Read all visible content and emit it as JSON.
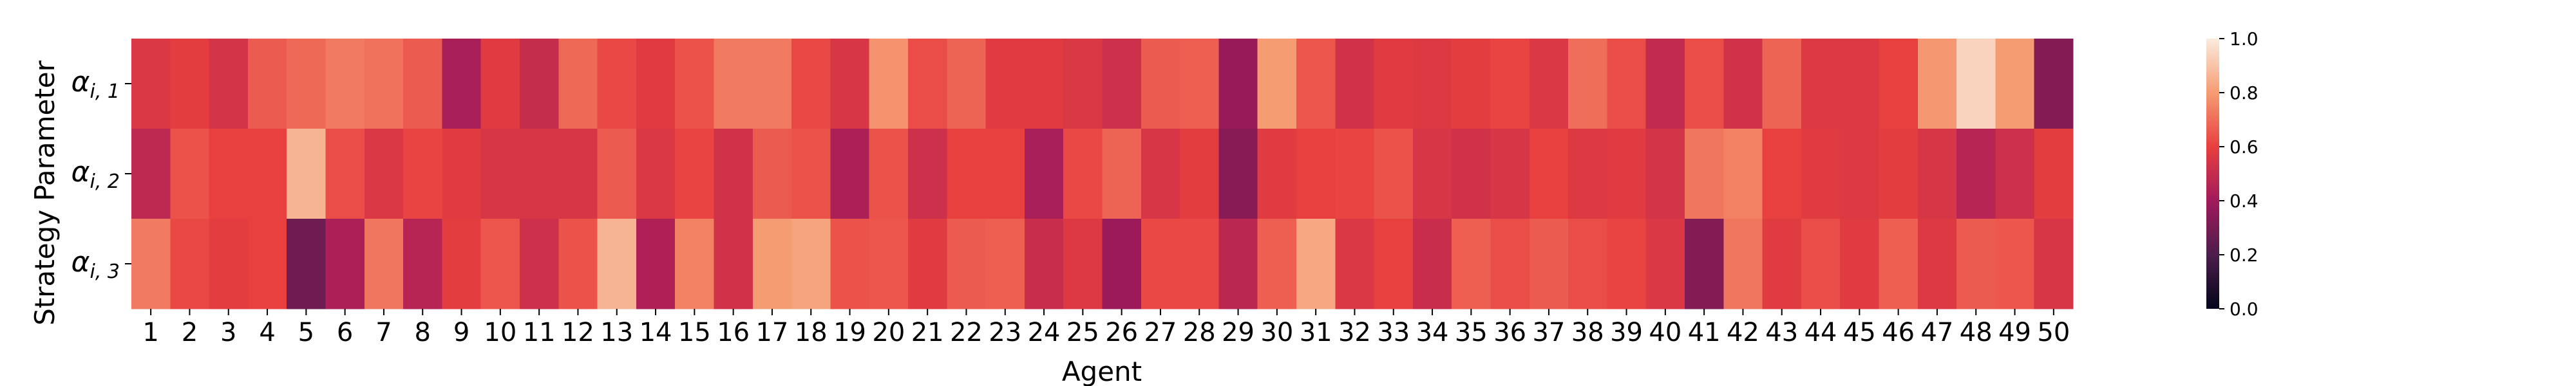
{
  "chart_data": {
    "type": "heatmap",
    "xlabel": "Agent",
    "ylabel": "Strategy Parameter",
    "x_categories": [
      "1",
      "2",
      "3",
      "4",
      "5",
      "6",
      "7",
      "8",
      "9",
      "10",
      "11",
      "12",
      "13",
      "14",
      "15",
      "16",
      "17",
      "18",
      "19",
      "20",
      "21",
      "22",
      "23",
      "24",
      "25",
      "26",
      "27",
      "28",
      "29",
      "30",
      "31",
      "32",
      "33",
      "34",
      "35",
      "36",
      "37",
      "38",
      "39",
      "40",
      "41",
      "42",
      "43",
      "44",
      "45",
      "46",
      "47",
      "48",
      "49",
      "50"
    ],
    "y_categories": [
      {
        "base": "α",
        "sub": "i, 1"
      },
      {
        "base": "α",
        "sub": "i, 2"
      },
      {
        "base": "α",
        "sub": "i, 3"
      }
    ],
    "values": [
      [
        0.56,
        0.59,
        0.54,
        0.66,
        0.69,
        0.73,
        0.71,
        0.66,
        0.42,
        0.58,
        0.5,
        0.69,
        0.62,
        0.58,
        0.64,
        0.73,
        0.73,
        0.62,
        0.55,
        0.78,
        0.63,
        0.68,
        0.58,
        0.58,
        0.56,
        0.52,
        0.66,
        0.67,
        0.38,
        0.8,
        0.65,
        0.53,
        0.58,
        0.57,
        0.59,
        0.61,
        0.56,
        0.7,
        0.63,
        0.49,
        0.63,
        0.53,
        0.68,
        0.57,
        0.57,
        0.6,
        0.79,
        0.94,
        0.8,
        0.33
      ],
      [
        0.48,
        0.64,
        0.6,
        0.6,
        0.86,
        0.63,
        0.56,
        0.61,
        0.58,
        0.55,
        0.55,
        0.55,
        0.66,
        0.56,
        0.61,
        0.53,
        0.66,
        0.64,
        0.43,
        0.64,
        0.52,
        0.6,
        0.6,
        0.42,
        0.62,
        0.68,
        0.55,
        0.59,
        0.34,
        0.58,
        0.6,
        0.61,
        0.64,
        0.55,
        0.53,
        0.55,
        0.6,
        0.57,
        0.58,
        0.54,
        0.72,
        0.74,
        0.6,
        0.58,
        0.57,
        0.59,
        0.55,
        0.46,
        0.52,
        0.59
      ],
      [
        0.73,
        0.62,
        0.59,
        0.6,
        0.28,
        0.43,
        0.72,
        0.46,
        0.59,
        0.65,
        0.52,
        0.64,
        0.86,
        0.44,
        0.74,
        0.53,
        0.8,
        0.82,
        0.64,
        0.65,
        0.58,
        0.66,
        0.67,
        0.51,
        0.57,
        0.39,
        0.62,
        0.62,
        0.47,
        0.67,
        0.83,
        0.56,
        0.6,
        0.51,
        0.67,
        0.63,
        0.66,
        0.63,
        0.61,
        0.56,
        0.33,
        0.72,
        0.58,
        0.63,
        0.58,
        0.67,
        0.57,
        0.66,
        0.65,
        0.55
      ]
    ],
    "colorbar": {
      "min": 0.0,
      "max": 1.0,
      "ticks": [
        "0.0",
        "0.2",
        "0.4",
        "0.6",
        "0.8",
        "1.0"
      ]
    },
    "colormap": [
      "#03051a",
      "#4c1d4b",
      "#a11a5b",
      "#e83f3f",
      "#f69c73",
      "#faebdd"
    ]
  }
}
